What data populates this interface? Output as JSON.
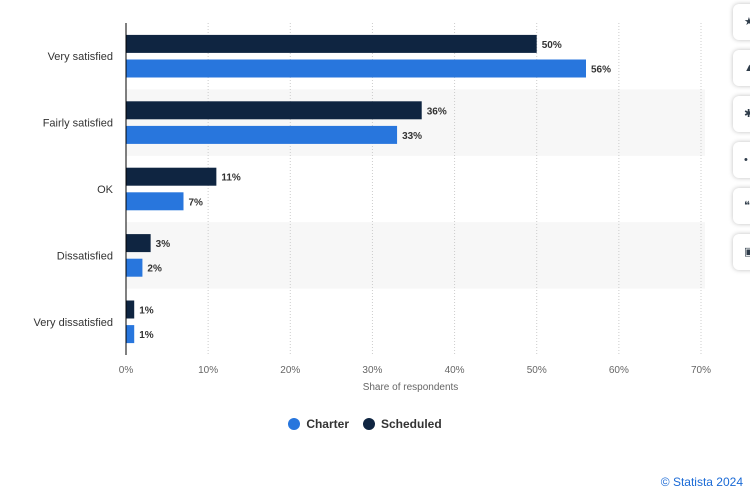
{
  "chart_data": {
    "type": "bar",
    "orientation": "horizontal",
    "categories": [
      "Very satisfied",
      "Fairly satisfied",
      "OK",
      "Dissatisfied",
      "Very dissatisfied"
    ],
    "series": [
      {
        "name": "Scheduled",
        "color": "#0f2541",
        "values": [
          50,
          36,
          11,
          3,
          1
        ],
        "labels": [
          "50%",
          "36%",
          "11%",
          "3%",
          "1%"
        ]
      },
      {
        "name": "Charter",
        "color": "#2876dd",
        "values": [
          56,
          33,
          7,
          2,
          1
        ],
        "labels": [
          "56%",
          "33%",
          "7%",
          "2%",
          "1%"
        ]
      }
    ],
    "xlim": [
      0,
      70
    ],
    "xticks": [
      0,
      10,
      20,
      30,
      40,
      50,
      60,
      70
    ],
    "xtick_labels": [
      "0%",
      "10%",
      "20%",
      "30%",
      "40%",
      "50%",
      "60%",
      "70%"
    ],
    "xlabel": "Share of respondents",
    "ylabel": "",
    "grid": true
  },
  "legend": {
    "items": [
      {
        "label": "Charter",
        "color": "#2876dd"
      },
      {
        "label": "Scheduled",
        "color": "#0f2541"
      }
    ]
  },
  "credit": "© Statista 2024",
  "toolbar": {
    "icons": [
      "star-icon",
      "bell-icon",
      "gear-icon",
      "share-icon",
      "quote-icon",
      "print-icon"
    ]
  }
}
